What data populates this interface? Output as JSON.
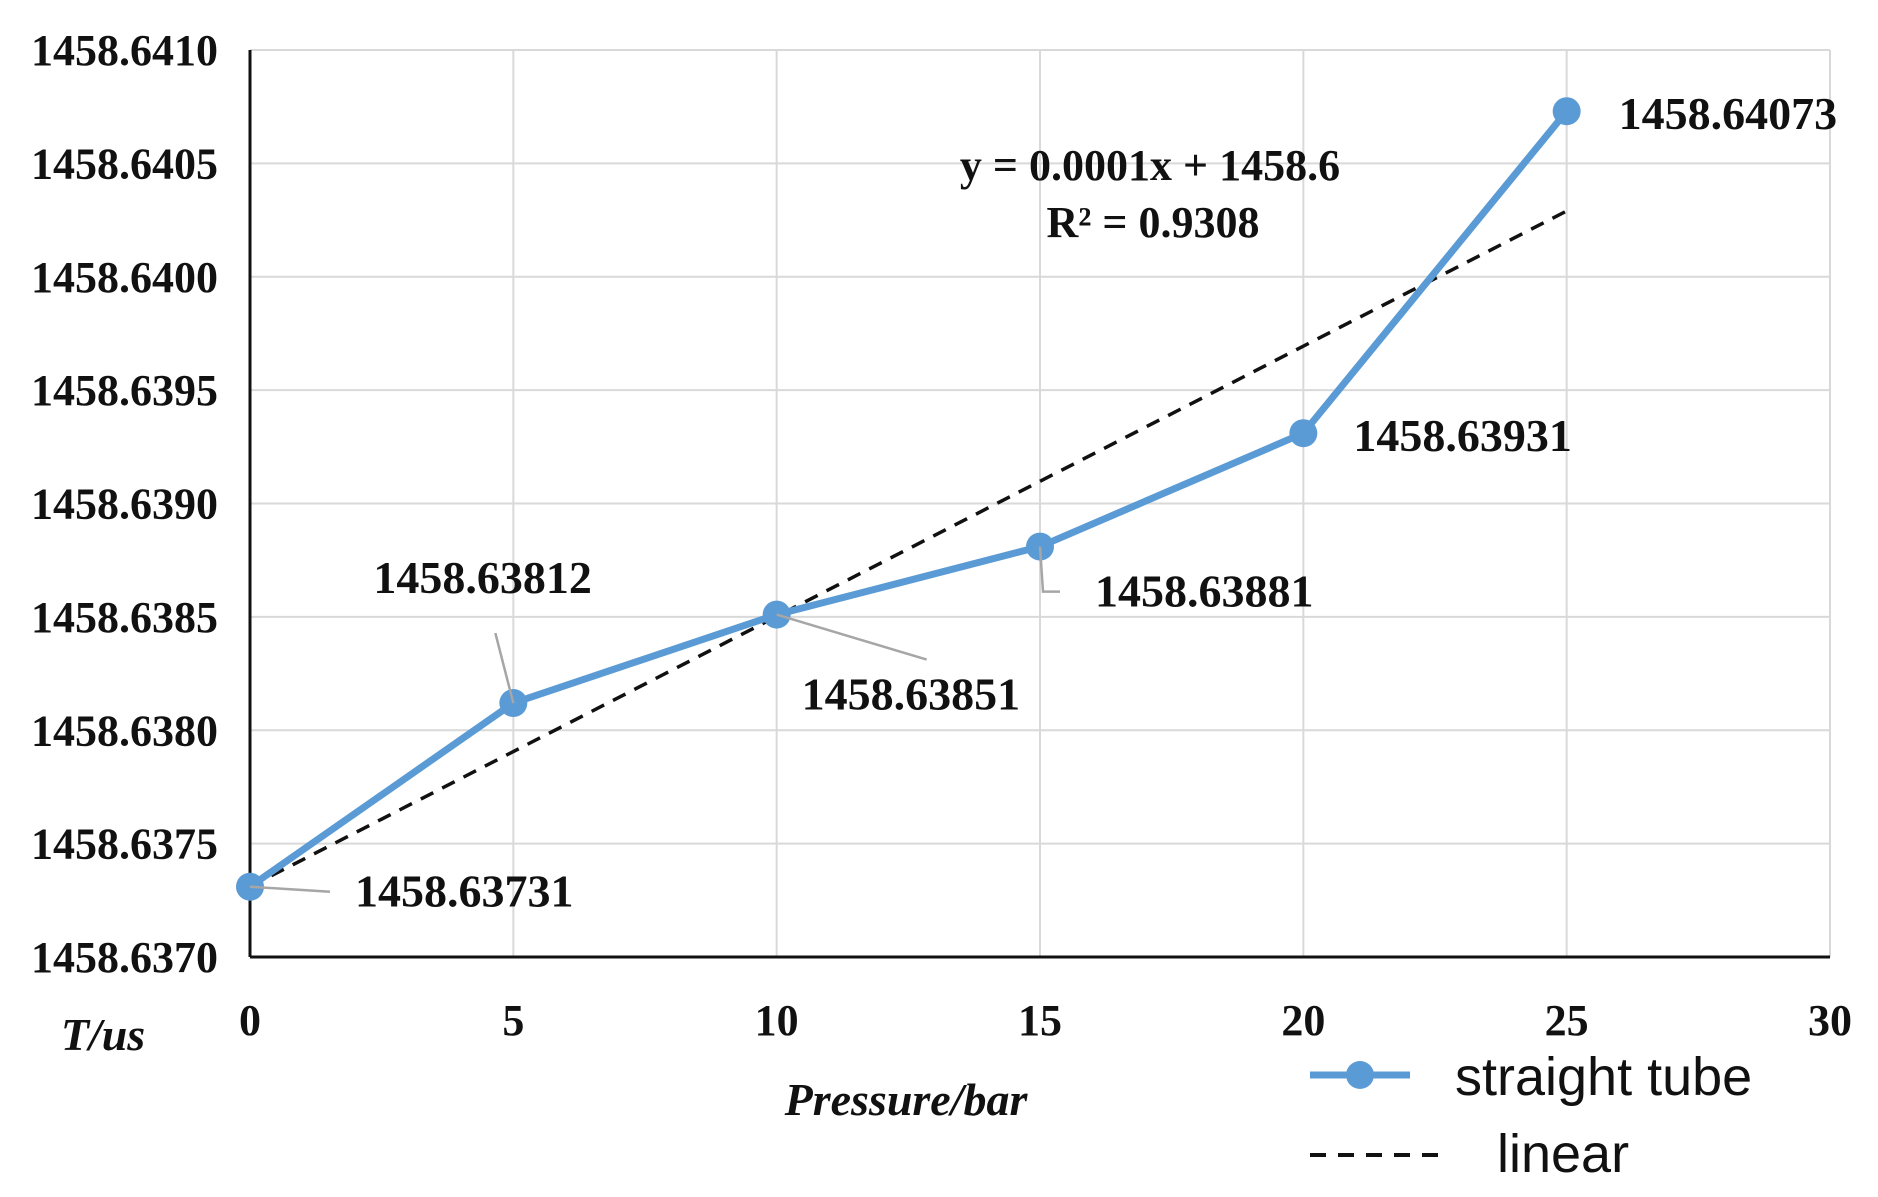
{
  "chart_data": {
    "type": "line",
    "title": "",
    "xlabel": "Pressure/bar",
    "ylabel": "T/us",
    "xlim": [
      0,
      30
    ],
    "ylim": [
      1458.637,
      1458.641
    ],
    "x_ticks": [
      "0",
      "5",
      "10",
      "15",
      "20",
      "25",
      "30"
    ],
    "y_ticks": [
      "1458.6370",
      "1458.6375",
      "1458.6380",
      "1458.6385",
      "1458.6390",
      "1458.6395",
      "1458.6400",
      "1458.6405",
      "1458.6410"
    ],
    "grid": true,
    "legend_position": "bottom-right",
    "series": [
      {
        "name": "straight tube",
        "style": "solid-with-markers",
        "color": "#5B9BD5",
        "x": [
          0,
          5,
          10,
          15,
          20,
          25
        ],
        "y": [
          1458.63731,
          1458.63812,
          1458.63851,
          1458.63881,
          1458.63931,
          1458.64073
        ],
        "labels": [
          "1458.63731",
          "1458.63812",
          "1458.63851",
          "1458.63881",
          "1458.63931",
          "1458.64073"
        ]
      },
      {
        "name": "linear",
        "style": "dashed",
        "color": "#111111",
        "x": [
          0,
          25
        ],
        "y": [
          1458.63731,
          1458.64029
        ]
      }
    ],
    "annotations": {
      "equation": "y = 0.0001x + 1458.6",
      "r_squared": "R² = 0.9308"
    }
  }
}
